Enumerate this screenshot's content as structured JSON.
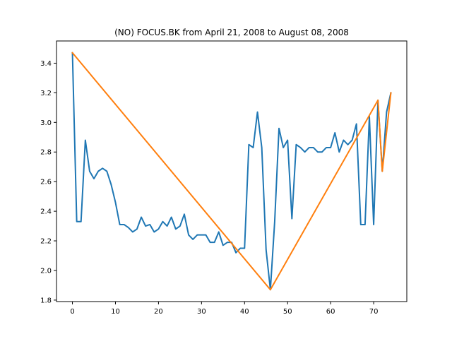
{
  "chart_data": {
    "type": "line",
    "title": "(NO) FOCUS.BK from April 21, 2008 to August 08, 2008",
    "xlabel": "",
    "ylabel": "",
    "xlim": [
      -3.7,
      77.7
    ],
    "ylim": [
      1.79,
      3.55
    ],
    "xticks": [
      0,
      10,
      20,
      30,
      40,
      50,
      60,
      70
    ],
    "yticks": [
      1.8,
      2.0,
      2.2,
      2.4,
      2.6,
      2.8,
      3.0,
      3.2,
      3.4
    ],
    "ytick_labels": [
      "1.8",
      "2.0",
      "2.2",
      "2.4",
      "2.6",
      "2.8",
      "3.0",
      "3.2",
      "3.4"
    ],
    "grid": false,
    "series": [
      {
        "color": "#1f77b4",
        "x": [
          0,
          1,
          2,
          3,
          4,
          5,
          6,
          7,
          8,
          9,
          10,
          11,
          12,
          13,
          14,
          15,
          16,
          17,
          18,
          19,
          20,
          21,
          22,
          23,
          24,
          25,
          26,
          27,
          28,
          29,
          30,
          31,
          32,
          33,
          34,
          35,
          36,
          37,
          38,
          39,
          40,
          41,
          42,
          43,
          44,
          45,
          46,
          47,
          48,
          49,
          50,
          51,
          52,
          53,
          54,
          55,
          56,
          57,
          58,
          59,
          60,
          61,
          62,
          63,
          64,
          65,
          66,
          67,
          68,
          69,
          70,
          71,
          72,
          73,
          74
        ],
        "y": [
          3.47,
          2.33,
          2.33,
          2.88,
          2.67,
          2.62,
          2.67,
          2.69,
          2.67,
          2.58,
          2.46,
          2.31,
          2.31,
          2.29,
          2.26,
          2.28,
          2.36,
          2.3,
          2.31,
          2.26,
          2.28,
          2.33,
          2.3,
          2.36,
          2.28,
          2.3,
          2.38,
          2.24,
          2.21,
          2.24,
          2.24,
          2.24,
          2.19,
          2.19,
          2.26,
          2.17,
          2.19,
          2.19,
          2.12,
          2.15,
          2.15,
          2.85,
          2.83,
          3.07,
          2.83,
          2.14,
          1.87,
          2.33,
          2.96,
          2.83,
          2.88,
          2.35,
          2.85,
          2.83,
          2.8,
          2.83,
          2.83,
          2.8,
          2.8,
          2.83,
          2.83,
          2.93,
          2.8,
          2.88,
          2.85,
          2.88,
          2.99,
          2.31,
          2.31,
          3.04,
          2.31,
          3.15,
          2.67,
          3.07,
          3.2
        ]
      },
      {
        "color": "#ff7f0e",
        "x": [
          0,
          46,
          71,
          72,
          74
        ],
        "y": [
          3.47,
          1.87,
          3.15,
          2.67,
          3.2
        ]
      }
    ]
  }
}
